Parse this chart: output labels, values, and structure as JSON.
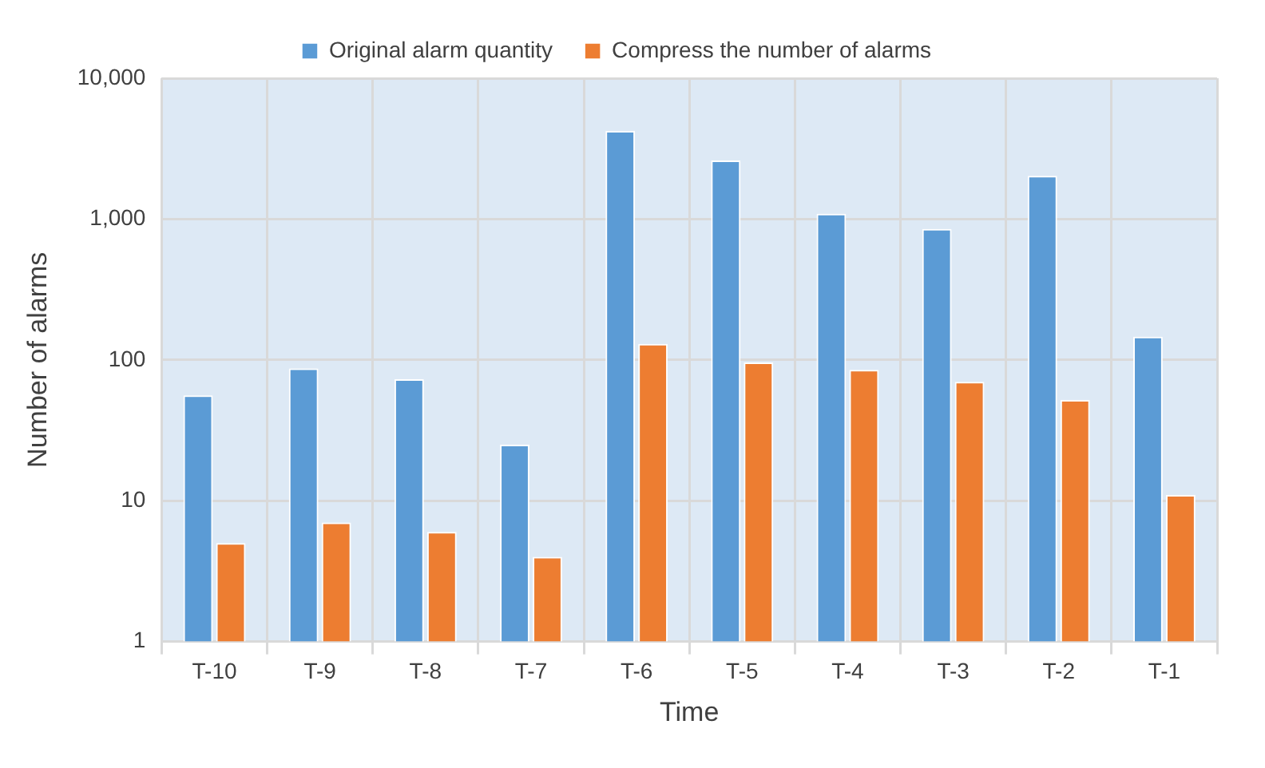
{
  "chart_data": {
    "type": "bar",
    "xlabel": "Time",
    "ylabel": "Number of alarms",
    "categories": [
      "T-10",
      "T-9",
      "T-8",
      "T-7",
      "T-6",
      "T-5",
      "T-4",
      "T-3",
      "T-2",
      "T-1"
    ],
    "series": [
      {
        "name": "Original alarm quantity",
        "color": "#5b9bd5",
        "values": [
          56,
          87,
          73,
          25,
          4220,
          2610,
          1090,
          850,
          2030,
          146
        ]
      },
      {
        "name": "Compress the number of alarms",
        "color": "#ed7d31",
        "values": [
          5,
          7,
          6,
          4,
          130,
          96,
          85,
          70,
          52,
          11
        ]
      }
    ],
    "log": "y",
    "ylim": [
      1,
      10000
    ],
    "yticks": [
      1,
      10,
      100,
      {
        "value": 1000,
        "label": "1,000"
      },
      {
        "value": 10000,
        "label": "10,000"
      }
    ],
    "grid": true,
    "legend": "top"
  }
}
